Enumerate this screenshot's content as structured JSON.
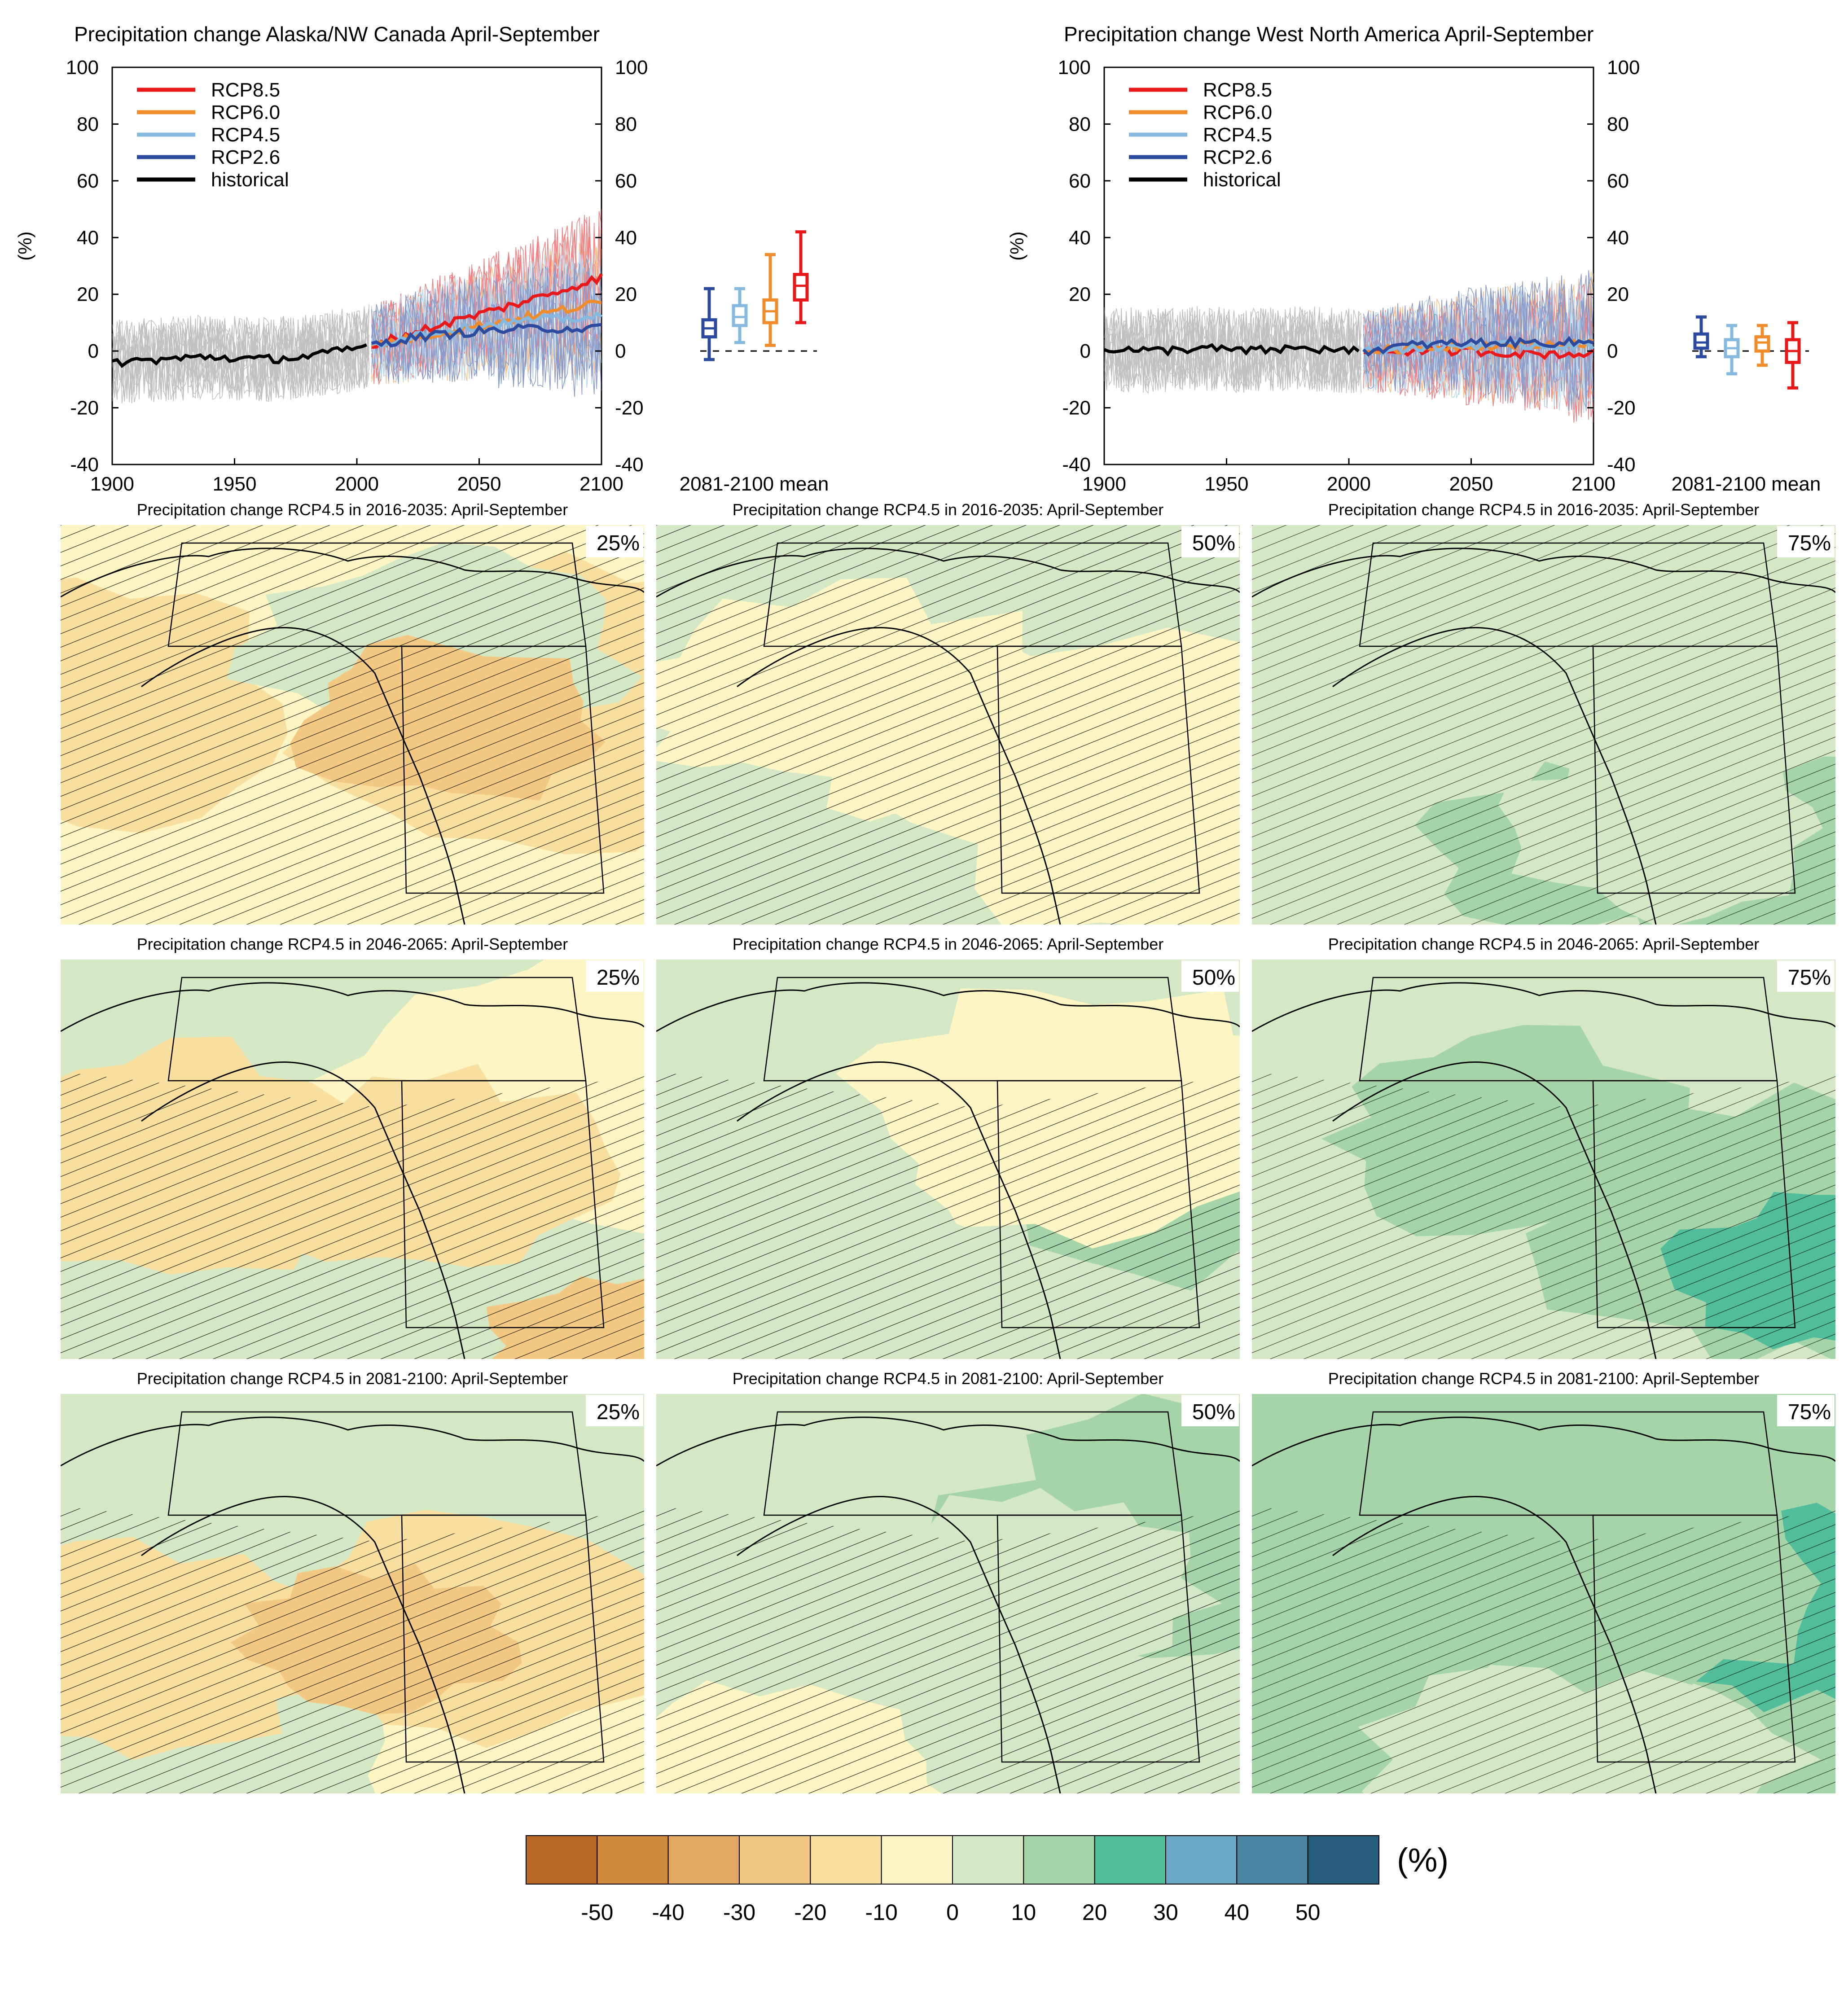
{
  "chart_data": [
    {
      "type": "line",
      "title": "Precipitation change Alaska/NW Canada April-September",
      "ylabel": "(%)",
      "xlim": [
        1900,
        2100
      ],
      "ylim": [
        -40,
        100
      ],
      "xticks": [
        1900,
        1950,
        2000,
        2050,
        2100
      ],
      "yticks": [
        -40,
        -20,
        0,
        20,
        40,
        60,
        80,
        100
      ],
      "legend_position": "top-left",
      "series": [
        {
          "name": "RCP8.5",
          "color": "#e8181b",
          "x": [
            2006,
            2025,
            2050,
            2075,
            2100
          ],
          "values": [
            2,
            7,
            13,
            19,
            26
          ]
        },
        {
          "name": "RCP6.0",
          "color": "#f08c2c",
          "x": [
            2006,
            2025,
            2050,
            2075,
            2100
          ],
          "values": [
            2,
            5,
            9,
            13,
            17
          ]
        },
        {
          "name": "RCP4.5",
          "color": "#86b9e0",
          "x": [
            2006,
            2025,
            2050,
            2075,
            2100
          ],
          "values": [
            2,
            6,
            9,
            11,
            12
          ]
        },
        {
          "name": "RCP2.6",
          "color": "#2c4a9e",
          "x": [
            2006,
            2025,
            2050,
            2075,
            2100
          ],
          "values": [
            2,
            5,
            7,
            8,
            8
          ]
        },
        {
          "name": "historical",
          "color": "#000000",
          "x": [
            1900,
            1920,
            1940,
            1960,
            1980,
            2000,
            2005
          ],
          "values": [
            -4,
            -3,
            -2,
            -3,
            -2,
            1,
            2
          ]
        }
      ],
      "boxes_label": "2081-2100 mean",
      "boxes": [
        {
          "series": "RCP2.6",
          "color": "#2c4a9e",
          "min": -3,
          "q1": 5,
          "median": 8,
          "q3": 11,
          "max": 22
        },
        {
          "series": "RCP4.5",
          "color": "#86b9e0",
          "min": 3,
          "q1": 9,
          "median": 12,
          "q3": 16,
          "max": 22
        },
        {
          "series": "RCP6.0",
          "color": "#f08c2c",
          "min": 2,
          "q1": 10,
          "median": 14,
          "q3": 18,
          "max": 34
        },
        {
          "series": "RCP8.5",
          "color": "#e8181b",
          "min": 10,
          "q1": 18,
          "median": 23,
          "q3": 27,
          "max": 42
        }
      ]
    },
    {
      "type": "line",
      "title": "Precipitation change West North America April-September",
      "ylabel": "(%)",
      "xlim": [
        1900,
        2100
      ],
      "ylim": [
        -40,
        100
      ],
      "xticks": [
        1900,
        1950,
        2000,
        2050,
        2100
      ],
      "yticks": [
        -40,
        -20,
        0,
        20,
        40,
        60,
        80,
        100
      ],
      "legend_position": "top-left",
      "series": [
        {
          "name": "RCP8.5",
          "color": "#e8181b",
          "x": [
            2006,
            2025,
            2050,
            2075,
            2100
          ],
          "values": [
            0,
            0,
            0,
            -1,
            -1
          ]
        },
        {
          "name": "RCP6.0",
          "color": "#f08c2c",
          "x": [
            2006,
            2025,
            2050,
            2075,
            2100
          ],
          "values": [
            0,
            1,
            2,
            2,
            3
          ]
        },
        {
          "name": "RCP4.5",
          "color": "#86b9e0",
          "x": [
            2006,
            2025,
            2050,
            2075,
            2100
          ],
          "values": [
            0,
            1,
            2,
            2,
            2
          ]
        },
        {
          "name": "RCP2.6",
          "color": "#2c4a9e",
          "x": [
            2006,
            2025,
            2050,
            2075,
            2100
          ],
          "values": [
            0,
            2,
            3,
            3,
            3
          ]
        },
        {
          "name": "historical",
          "color": "#000000",
          "x": [
            1900,
            1920,
            1940,
            1960,
            1980,
            2000,
            2005
          ],
          "values": [
            1,
            0,
            1,
            0,
            1,
            0,
            0
          ]
        }
      ],
      "boxes_label": "2081-2100 mean",
      "boxes": [
        {
          "series": "RCP2.6",
          "color": "#2c4a9e",
          "min": -2,
          "q1": 1,
          "median": 3,
          "q3": 6,
          "max": 12
        },
        {
          "series": "RCP4.5",
          "color": "#86b9e0",
          "min": -8,
          "q1": -2,
          "median": 1,
          "q3": 4,
          "max": 9
        },
        {
          "series": "RCP6.0",
          "color": "#f08c2c",
          "min": -5,
          "q1": 0,
          "median": 3,
          "q3": 5,
          "max": 9
        },
        {
          "series": "RCP8.5",
          "color": "#e8181b",
          "min": -13,
          "q1": -4,
          "median": 0,
          "q3": 4,
          "max": 10
        }
      ]
    },
    {
      "type": "heatmap",
      "maps": [
        {
          "title": "Precipitation change RCP4.5 in 2016-2035: April-September",
          "percentile": "25%"
        },
        {
          "title": "Precipitation change RCP4.5 in 2016-2035: April-September",
          "percentile": "50%"
        },
        {
          "title": "Precipitation change RCP4.5 in 2016-2035: April-September",
          "percentile": "75%"
        },
        {
          "title": "Precipitation change RCP4.5 in 2046-2065: April-September",
          "percentile": "25%"
        },
        {
          "title": "Precipitation change RCP4.5 in 2046-2065: April-September",
          "percentile": "50%"
        },
        {
          "title": "Precipitation change RCP4.5 in 2046-2065: April-September",
          "percentile": "75%"
        },
        {
          "title": "Precipitation change RCP4.5 in 2081-2100: April-September",
          "percentile": "25%"
        },
        {
          "title": "Precipitation change RCP4.5 in 2081-2100: April-September",
          "percentile": "50%"
        },
        {
          "title": "Precipitation change RCP4.5 in 2081-2100: April-September",
          "percentile": "75%"
        }
      ],
      "colorbar": {
        "unit": "(%)",
        "ticks": [
          "-50",
          "-40",
          "-30",
          "-20",
          "-10",
          "0",
          "10",
          "20",
          "30",
          "40",
          "50"
        ],
        "colors": [
          "#b86a24",
          "#d08a3e",
          "#e2a763",
          "#f2c882",
          "#f8dfa0",
          "#fdf5c3",
          "#d5e8c6",
          "#a4d4a8",
          "#52bd9a",
          "#6aa8c6",
          "#4a86a4",
          "#265d7c"
        ]
      }
    }
  ]
}
